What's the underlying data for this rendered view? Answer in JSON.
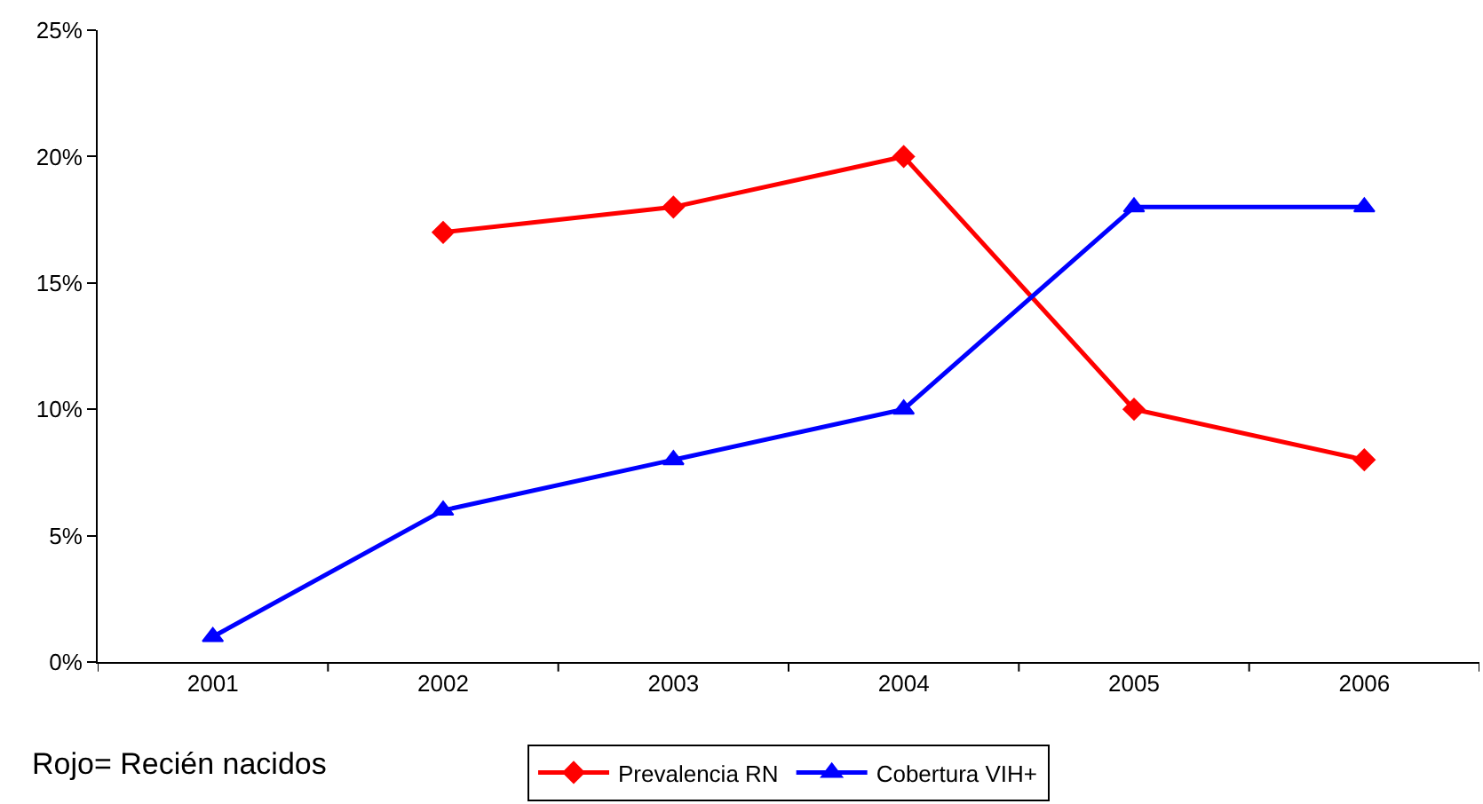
{
  "chart_data": {
    "type": "line",
    "categories": [
      "2001",
      "2002",
      "2003",
      "2004",
      "2005",
      "2006"
    ],
    "series": [
      {
        "name": "Prevalencia RN",
        "color": "#ff0000",
        "marker": "diamond",
        "values": [
          null,
          17,
          18,
          20,
          10,
          8
        ]
      },
      {
        "name": "Cobertura VIH+",
        "color": "#0000ff",
        "marker": "triangle",
        "values": [
          1,
          6,
          8,
          10,
          18,
          18
        ]
      }
    ],
    "ylim": [
      0,
      25
    ],
    "yticks": [
      {
        "value": 0,
        "label": "0%"
      },
      {
        "value": 5,
        "label": "5%"
      },
      {
        "value": 10,
        "label": "10%"
      },
      {
        "value": 15,
        "label": "15%"
      },
      {
        "value": 20,
        "label": "20%"
      },
      {
        "value": 25,
        "label": "25%"
      }
    ],
    "legend": "bottom",
    "line_style": "solid",
    "annotations": [
      "Rojo= Recién nacidos"
    ]
  }
}
